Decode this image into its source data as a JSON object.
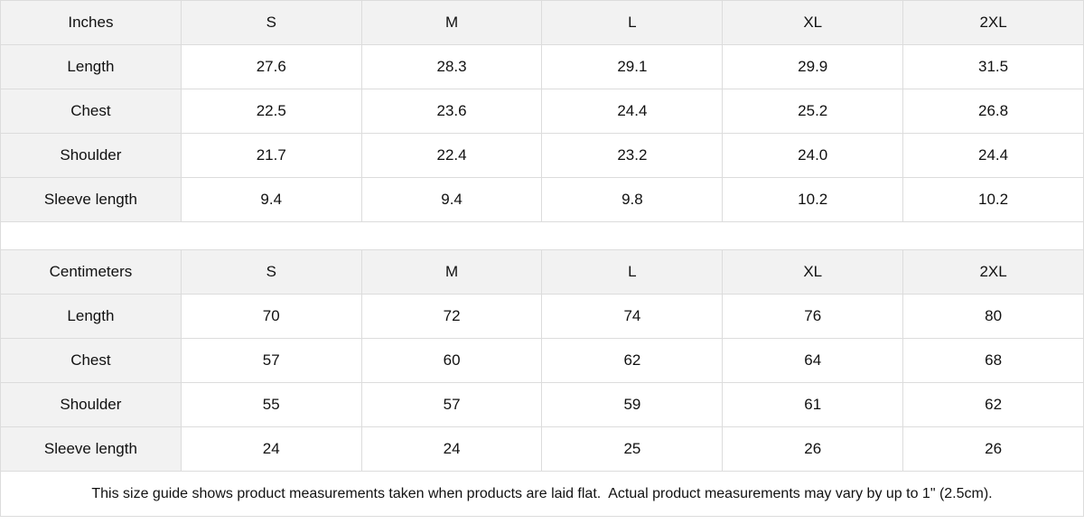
{
  "tables": [
    {
      "unit": "Inches",
      "sizes": [
        "S",
        "M",
        "L",
        "XL",
        "2XL"
      ],
      "rows": [
        {
          "label": "Length",
          "values": [
            "27.6",
            "28.3",
            "29.1",
            "29.9",
            "31.5"
          ]
        },
        {
          "label": "Chest",
          "values": [
            "22.5",
            "23.6",
            "24.4",
            "25.2",
            "26.8"
          ]
        },
        {
          "label": "Shoulder",
          "values": [
            "21.7",
            "22.4",
            "23.2",
            "24.0",
            "24.4"
          ]
        },
        {
          "label": "Sleeve length",
          "values": [
            "9.4",
            "9.4",
            "9.8",
            "10.2",
            "10.2"
          ]
        }
      ]
    },
    {
      "unit": "Centimeters",
      "sizes": [
        "S",
        "M",
        "L",
        "XL",
        "2XL"
      ],
      "rows": [
        {
          "label": "Length",
          "values": [
            "70",
            "72",
            "74",
            "76",
            "80"
          ]
        },
        {
          "label": "Chest",
          "values": [
            "57",
            "60",
            "62",
            "64",
            "68"
          ]
        },
        {
          "label": "Shoulder",
          "values": [
            "55",
            "57",
            "59",
            "61",
            "62"
          ]
        },
        {
          "label": "Sleeve length",
          "values": [
            "24",
            "24",
            "25",
            "26",
            "26"
          ]
        }
      ]
    }
  ],
  "note": "This size guide shows product measurements taken when products are laid flat.  Actual product measurements may vary by up to 1\" (2.5cm)."
}
